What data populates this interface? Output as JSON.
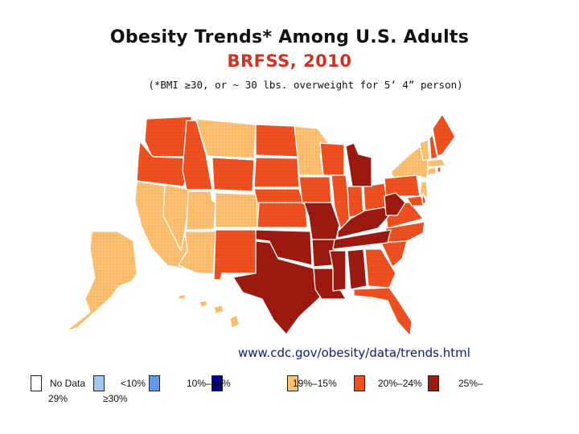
{
  "title": "Obesity Trends* Among U.S. Adults",
  "subtitle": "BRFSS, 2010",
  "note": "(*BMI ≥30, or ~ 30 lbs. overweight for 5’ 4” person)",
  "source_url": "www.cdc.gov/obesity/data/trends.html",
  "legend": [
    {
      "label": "No Data",
      "color": "#ffffff"
    },
    {
      "label": "<10%",
      "color": "#a3c8f0"
    },
    {
      "label": "10%–14%",
      "color": "#6699ee"
    },
    {
      "label": "15%–19%",
      "color": "#000099"
    },
    {
      "label": "20%–24%",
      "color": "#fcc070"
    },
    {
      "label": "25%–29%",
      "color": "#f05020"
    },
    {
      "label": "≥30%",
      "color": "#9c1a10"
    }
  ],
  "legend_rows": {
    "row1": [
      "No Data",
      "<10%",
      "10%–14%",
      "15%–19%",
      "20%–24%",
      "25%–"
    ],
    "row2": [
      "29%",
      "≥30%"
    ]
  },
  "colors": {
    "band_20_24": "#fcc070",
    "band_25_29": "#f05020",
    "band_30_plus": "#9c1a10"
  },
  "state_bands": {
    "20%–24%": [
      "CA",
      "NV",
      "UT",
      "AZ",
      "CO",
      "MT",
      "MN",
      "NY",
      "VT",
      "MA",
      "CT",
      "NJ",
      "AK",
      "HI",
      "DC"
    ],
    "25%–29%": [
      "WA",
      "OR",
      "ID",
      "WY",
      "NM",
      "ND",
      "SD",
      "NE",
      "KS",
      "IA",
      "WI",
      "IL",
      "IN",
      "OH",
      "PA",
      "VA",
      "NC",
      "GA",
      "FL",
      "ME",
      "NH",
      "RI",
      "DE",
      "MD",
      "SC"
    ],
    "≥30%": [
      "TX",
      "OK",
      "MO",
      "AR",
      "LA",
      "MS",
      "AL",
      "TN",
      "KY",
      "WV",
      "MI"
    ]
  }
}
